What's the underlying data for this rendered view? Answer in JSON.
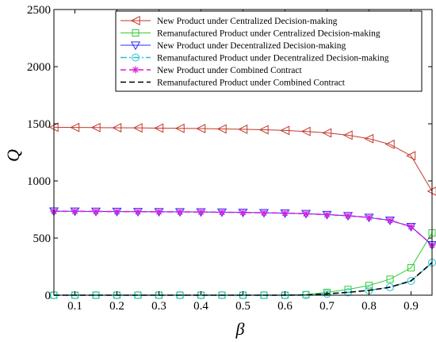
{
  "chart_data": {
    "type": "line",
    "xlabel": "β",
    "ylabel": "Q",
    "xlim": [
      0.05,
      0.95
    ],
    "ylim": [
      0,
      2500
    ],
    "xticks": [
      0.1,
      0.2,
      0.3,
      0.4,
      0.5,
      0.6,
      0.7,
      0.8,
      0.9
    ],
    "xtick_labels": [
      "0.1",
      "0.2",
      "0.3",
      "0.4",
      "0.5",
      "0.6",
      "0.7",
      "0.8",
      "0.9"
    ],
    "yticks": [
      0,
      500,
      1000,
      1500,
      2000,
      2500
    ],
    "ytick_labels": [
      "0",
      "500",
      "1000",
      "1500",
      "2000",
      "2500"
    ],
    "legend_position": "top-right",
    "grid": false,
    "x": [
      0.05,
      0.1,
      0.15,
      0.2,
      0.25,
      0.3,
      0.35,
      0.4,
      0.45,
      0.5,
      0.55,
      0.6,
      0.65,
      0.7,
      0.75,
      0.8,
      0.85,
      0.9,
      0.95
    ],
    "series": [
      {
        "name": "New Product under Centralized Decision-making",
        "color": "#c0392b",
        "line": "solid",
        "marker": "triangle-left",
        "values": [
          1470,
          1468,
          1467,
          1465,
          1464,
          1462,
          1460,
          1458,
          1455,
          1452,
          1448,
          1442,
          1433,
          1420,
          1400,
          1370,
          1320,
          1220,
          910
        ]
      },
      {
        "name": "Remanufactured Product under Centralized Decision-making",
        "color": "#33cc33",
        "line": "solid",
        "marker": "square",
        "values": [
          0,
          0,
          0,
          0,
          0,
          0,
          0,
          0,
          0,
          0,
          0,
          0,
          5,
          25,
          50,
          85,
          140,
          240,
          545
        ]
      },
      {
        "name": "New Product under Decentralized Decision-making",
        "color": "#2a2aff",
        "line": "solid",
        "marker": "triangle-down",
        "values": [
          735,
          734,
          733,
          732,
          731,
          730,
          729,
          728,
          726,
          724,
          721,
          718,
          713,
          705,
          695,
          680,
          655,
          600,
          440
        ]
      },
      {
        "name": "Remanufactured Product under Decentralized Decision-making",
        "color": "#22c3d6",
        "line": "dashdot",
        "marker": "circle",
        "values": [
          0,
          0,
          0,
          0,
          0,
          0,
          0,
          0,
          0,
          0,
          0,
          0,
          2,
          12,
          25,
          42,
          70,
          125,
          285
        ]
      },
      {
        "name": "New Product under Combined Contract",
        "color": "#d81bd8",
        "line": "dashed",
        "marker": "star",
        "values": [
          735,
          734,
          733,
          732,
          731,
          730,
          729,
          728,
          726,
          724,
          721,
          718,
          713,
          705,
          695,
          680,
          655,
          600,
          440
        ]
      },
      {
        "name": "Remanufactured Product under Combined Contract",
        "color": "#000000",
        "line": "dashed",
        "marker": "none",
        "values": [
          0,
          0,
          0,
          0,
          0,
          0,
          0,
          0,
          0,
          0,
          0,
          0,
          2,
          12,
          25,
          42,
          70,
          125,
          285
        ]
      }
    ]
  }
}
